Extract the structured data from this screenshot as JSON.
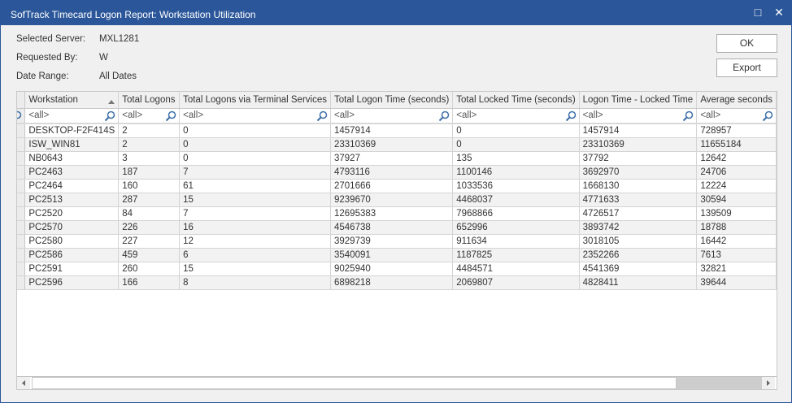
{
  "window": {
    "title": "SofTrack Timecard Logon Report: Workstation Utilization",
    "maximize_icon": "□",
    "close_icon": "✕"
  },
  "info": [
    {
      "label": "Selected Server:",
      "value": "MXL1281"
    },
    {
      "label": "Requested By:",
      "value": "W"
    },
    {
      "label": "Date Range:",
      "value": "All Dates"
    }
  ],
  "buttons": {
    "ok": "OK",
    "export": "Export"
  },
  "grid": {
    "columns": [
      "Workstation",
      "Total Logons",
      "Total Logons via Terminal Services",
      "Total Logon Time (seconds)",
      "Total Locked Time (seconds)",
      "Logon Time - Locked Time",
      "Average seconds"
    ],
    "sorted_column": "Workstation",
    "sort_direction": "ascending",
    "filter_placeholder": "<all>",
    "rows": [
      [
        "DESKTOP-F2F414S",
        "2",
        "0",
        "1457914",
        "0",
        "1457914",
        "728957"
      ],
      [
        "ISW_WIN81",
        "2",
        "0",
        "23310369",
        "0",
        "23310369",
        "11655184"
      ],
      [
        "NB0643",
        "3",
        "0",
        "37927",
        "135",
        "37792",
        "12642"
      ],
      [
        "PC2463",
        "187",
        "7",
        "4793116",
        "1100146",
        "3692970",
        "24706"
      ],
      [
        "PC2464",
        "160",
        "61",
        "2701666",
        "1033536",
        "1668130",
        "12224"
      ],
      [
        "PC2513",
        "287",
        "15",
        "9239670",
        "4468037",
        "4771633",
        "30594"
      ],
      [
        "PC2520",
        "84",
        "7",
        "12695383",
        "7968866",
        "4726517",
        "139509"
      ],
      [
        "PC2570",
        "226",
        "16",
        "4546738",
        "652996",
        "3893742",
        "18788"
      ],
      [
        "PC2580",
        "227",
        "12",
        "3929739",
        "911634",
        "3018105",
        "16442"
      ],
      [
        "PC2586",
        "459",
        "6",
        "3540091",
        "1187825",
        "2352266",
        "7613"
      ],
      [
        "PC2591",
        "260",
        "15",
        "9025940",
        "4484571",
        "4541369",
        "32821"
      ],
      [
        "PC2596",
        "166",
        "8",
        "6898218",
        "2069807",
        "4828411",
        "39644"
      ]
    ]
  },
  "colors": {
    "titlebar": "#2b579a",
    "alt_row": "#f2f2f2"
  }
}
